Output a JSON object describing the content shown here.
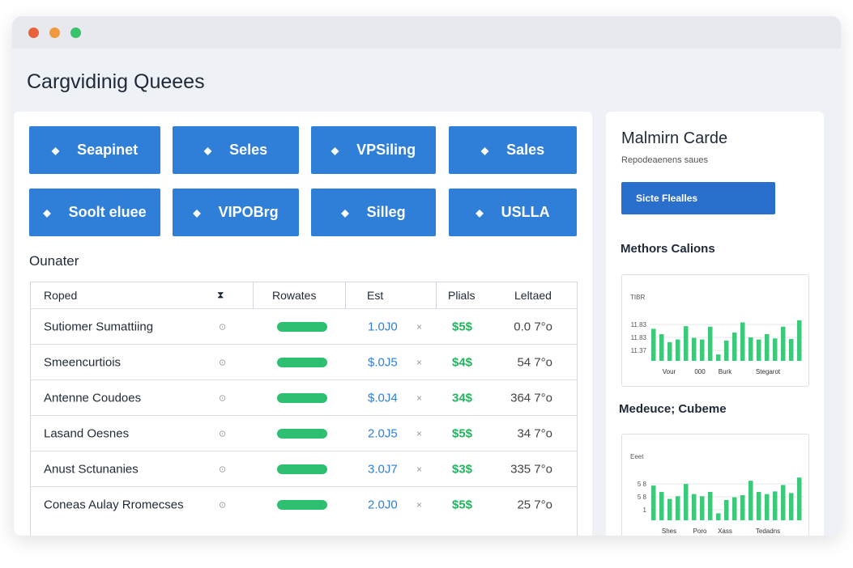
{
  "header": {
    "title": "Cargvidinig Queees"
  },
  "buttons": [
    "Seapinet",
    "Seles",
    "VPSiling",
    "Sales",
    "Soolt eluee",
    "VIPOBrg",
    "Silleg",
    "USLLA"
  ],
  "section": {
    "title": "Ounater"
  },
  "table": {
    "columns": [
      "Roped",
      "Rowates",
      "Est",
      "Plials",
      "Leltaed"
    ],
    "rows": [
      [
        "Sutiomer Sumattiing",
        "1.0J0",
        "$5$",
        "0.0 7°o"
      ],
      [
        "Smeencurtiois",
        "$.0J5",
        "$4$",
        "54 7°o"
      ],
      [
        "Antenne Coudoes",
        "$.0J4",
        "34$",
        "364 7°o"
      ],
      [
        "Lasand Oesnes",
        "2.0J5",
        "$5$",
        "34 7°o"
      ],
      [
        "Anust Sctunanies",
        "3.0J7",
        "$3$",
        "335 7°o"
      ],
      [
        "Coneas Aulay Rromecses",
        "2.0J0",
        "$5$",
        "25 7°o"
      ]
    ]
  },
  "sidebar": {
    "title": "Malmirn Carde",
    "subtitle": "Repodeaenens saues",
    "button": "Sicte Flealles",
    "charts": [
      {
        "title": "Methors Calions",
        "ylabels": [
          "TIBR",
          "11.83",
          "11.83",
          "11.37"
        ],
        "xlabels": [
          "Vour",
          "000",
          "Burk",
          "Stegarot"
        ],
        "ylim": [
          0,
          10
        ],
        "values": [
          6,
          5,
          3.5,
          4,
          6.5,
          4.3,
          4,
          6.4,
          1.2,
          3.8,
          5.3,
          7.2,
          4.4,
          4,
          5,
          4.2,
          6.4,
          4.1,
          7.6
        ]
      },
      {
        "title": "Medeuce; Cubeme",
        "ylabels": [
          "Eeet",
          "5 8",
          "5 8",
          "1"
        ],
        "xlabels": [
          "Shes",
          "Poro",
          "Xass",
          "Tedadns"
        ],
        "ylim": [
          0,
          10
        ],
        "values": [
          6.5,
          5.3,
          4,
          4.5,
          6.8,
          4.9,
          4.5,
          5.3,
          1.3,
          3.8,
          4.3,
          4.7,
          7.4,
          5.3,
          4.9,
          5.4,
          6.6,
          5.1,
          8
        ]
      }
    ]
  }
}
